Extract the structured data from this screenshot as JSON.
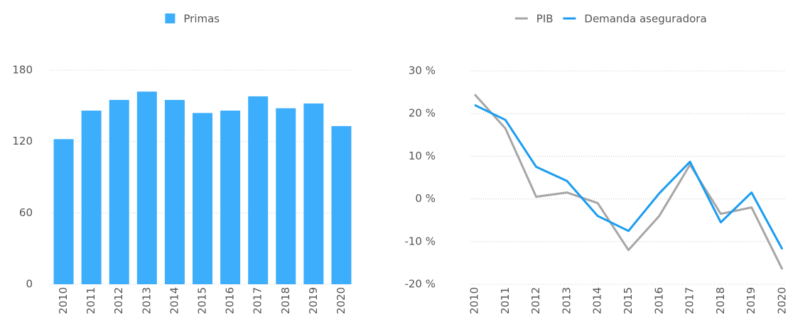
{
  "chart_data": [
    {
      "type": "bar",
      "categories": [
        "2010",
        "2011",
        "2012",
        "2013",
        "2014",
        "2015",
        "2016",
        "2017",
        "2018",
        "2019",
        "2020"
      ],
      "series": [
        {
          "name": "Primas",
          "color": "#3daefc",
          "values": [
            122,
            146,
            155,
            162,
            155,
            144,
            146,
            158,
            148,
            152,
            133
          ]
        }
      ],
      "ylim": [
        0,
        180
      ],
      "yticks": [
        0,
        60,
        120,
        180
      ],
      "grid": true,
      "legend": "top"
    },
    {
      "type": "line",
      "categories": [
        "2010",
        "2011",
        "2012",
        "2013",
        "2014",
        "2015",
        "2016",
        "2017",
        "2018",
        "2019",
        "2020"
      ],
      "series": [
        {
          "name": "PIB",
          "color": "#a6a6a6",
          "values": [
            24.5,
            16.5,
            0.5,
            1.5,
            -1,
            -12,
            -4,
            8,
            -3.5,
            -2,
            -16.5
          ]
        },
        {
          "name": "Demanda aseguradora",
          "color": "#1a9df0",
          "values": [
            22,
            18.5,
            7.5,
            4.2,
            -4,
            -7.5,
            1.3,
            8.7,
            -5.5,
            1.5,
            -11.8
          ]
        }
      ],
      "ylim": [
        -20,
        30
      ],
      "yticks": [
        {
          "value": -20,
          "label": "-20 %"
        },
        {
          "value": -10,
          "label": "-10 %"
        },
        {
          "value": 0,
          "label": "0 %"
        },
        {
          "value": 10,
          "label": "10 %"
        },
        {
          "value": 20,
          "label": "20 %"
        },
        {
          "value": 30,
          "label": "30 %"
        }
      ],
      "grid": true,
      "legend": "top"
    }
  ]
}
